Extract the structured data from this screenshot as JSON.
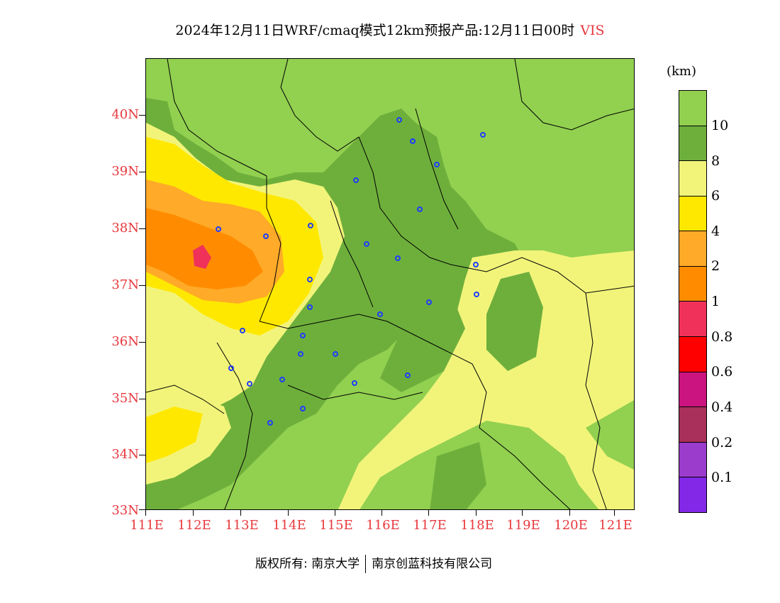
{
  "title": {
    "main": "2024年12月11日WRF/cmaq模式12km预报产品:12月11日00时",
    "variable": "VIS"
  },
  "map": {
    "lat_labels": [
      "40N",
      "39N",
      "38N",
      "37N",
      "36N",
      "35N",
      "34N",
      "33N"
    ],
    "lon_labels": [
      "111E",
      "112E",
      "113E",
      "114E",
      "115E",
      "116E",
      "117E",
      "118E",
      "119E",
      "120E",
      "121E"
    ],
    "lat_range": [
      33,
      40.95
    ],
    "lon_range": [
      111,
      121.4
    ],
    "colors": {
      "gt10": "#92d050",
      "8_10": "#6eaf3c",
      "6_8": "#f2f47a",
      "4_6": "#ffe800",
      "2_4": "#ffaa28",
      "1_2": "#ff8c00",
      "0.8_1": "#f0325a",
      "station": "#1e3cff",
      "axis_label": "#e8383d"
    }
  },
  "colorbar": {
    "unit": "(km)",
    "colors": [
      "#92d050",
      "#6eaf3c",
      "#f2f47a",
      "#ffe800",
      "#ffaa28",
      "#ff8c00",
      "#f0325a",
      "#ff0000",
      "#cc1480",
      "#a8305a",
      "#9b3ccd",
      "#8228e6"
    ],
    "labels": [
      "10",
      "8",
      "6",
      "4",
      "2",
      "1",
      "0.8",
      "0.6",
      "0.4",
      "0.2",
      "0.1"
    ]
  },
  "footer": {
    "left": "版权所有: 南京大学",
    "right": "南京创蓝科技有限公司"
  }
}
